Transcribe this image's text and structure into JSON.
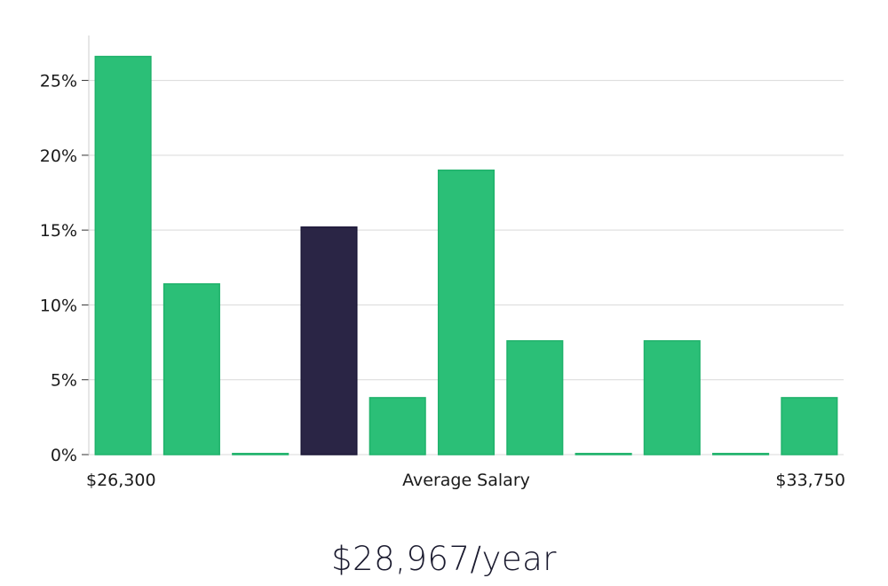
{
  "chart_data": {
    "type": "bar",
    "title": "",
    "xlabel": "Average Salary",
    "ylabel": "",
    "x_range_labels": {
      "min": "$26,300",
      "max": "$33,750"
    },
    "ylim": [
      0,
      28
    ],
    "yticks": [
      0,
      5,
      10,
      15,
      20,
      25
    ],
    "ytick_suffix": "%",
    "grid": true,
    "values": [
      26.6,
      11.4,
      0,
      15.2,
      3.8,
      19.0,
      7.6,
      0,
      7.6,
      0,
      3.8
    ],
    "highlight_index": 3,
    "colors": {
      "bar": "#2bbf77",
      "bar_edge": "#1fb26b",
      "highlight": "#2a2545",
      "grid": "#d9d9d9",
      "axis": "#cccccc"
    }
  },
  "summary": {
    "salary_text": "$28,967/year"
  }
}
